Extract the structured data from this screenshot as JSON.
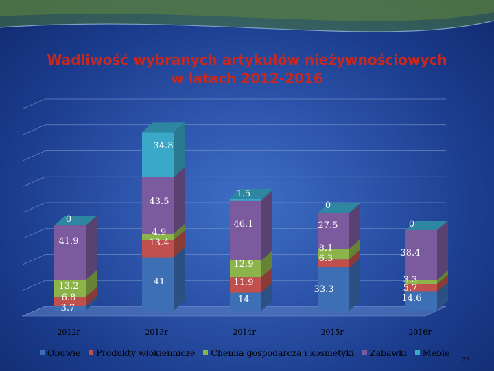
{
  "slide": {
    "title_line1": "Wadliwość wybranych artykułów nieżywnościowych",
    "title_line2": "w latach 2012-2016",
    "page_number": "22"
  },
  "colors": {
    "title": "#c8281e",
    "obuwie": "#3d6fb5",
    "produkty": "#c0504d",
    "chemia": "#8db44a",
    "zabawki": "#7b5a9e",
    "meble": "#3aa8c9"
  },
  "chart_data": {
    "type": "bar",
    "stacked": true,
    "three_d": true,
    "categories": [
      "2012r",
      "2013r",
      "2014r",
      "2015r",
      "2016r"
    ],
    "series": [
      {
        "name": "Obuwie",
        "values": [
          3.7,
          41,
          14,
          33.3,
          14.6
        ]
      },
      {
        "name": "Produkty włókiennicze",
        "values": [
          6.8,
          13.4,
          11.9,
          6.3,
          5.7
        ]
      },
      {
        "name": "Chemia gospodarcza i kosmetyki",
        "values": [
          13.2,
          4.9,
          12.9,
          8.1,
          3.3
        ]
      },
      {
        "name": "Zabawki",
        "values": [
          41.9,
          43.5,
          46.1,
          27.5,
          38.4
        ]
      },
      {
        "name": "Meble",
        "values": [
          0,
          34.8,
          1.5,
          0,
          0
        ]
      }
    ],
    "data_labels": [
      [
        "3.7",
        "41",
        "14",
        "33.3",
        "14.6"
      ],
      [
        "6.8",
        "13.4",
        "11.9",
        "6.3",
        "5.7"
      ],
      [
        "13.2",
        "4.9",
        "12.9",
        "8.1",
        "3.3"
      ],
      [
        "41.9",
        "43.5",
        "46.1",
        "27.5",
        "38.4"
      ],
      [
        "0",
        "34.8",
        "1.5",
        "0",
        "0"
      ]
    ],
    "ylim": [
      0,
      160
    ],
    "gridlines": true,
    "legend_position": "bottom"
  }
}
